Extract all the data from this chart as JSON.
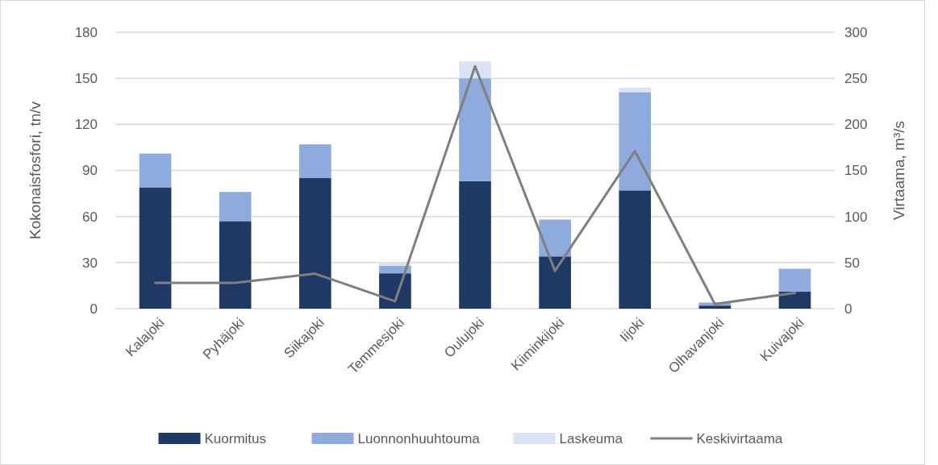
{
  "chart_data": {
    "type": "bar",
    "stacked": true,
    "categories": [
      "Kalajoki",
      "Pyhäjoki",
      "Siikajoki",
      "Temmesjoki",
      "Oulujoki",
      "Kiiminkijoki",
      "Iijoki",
      "Olhavanjoki",
      "Kuivajoki"
    ],
    "series": [
      {
        "name": "Kuormitus",
        "color": "#203864",
        "values": [
          79,
          57,
          85,
          23,
          83,
          34,
          77,
          2,
          11
        ]
      },
      {
        "name": "Luonnonhuuhtouma",
        "color": "#8faadc",
        "values": [
          22,
          19,
          22,
          5,
          67,
          24,
          64,
          2,
          15
        ]
      },
      {
        "name": "Laskeuma",
        "color": "#dae3f3",
        "values": [
          0,
          0,
          0,
          1.5,
          11,
          0,
          3,
          0,
          0
        ]
      },
      {
        "name": "Keskivirtaama",
        "type": "line",
        "axis": "y2",
        "color": "#7f7f7f",
        "values": [
          28,
          28,
          38,
          8,
          263,
          41,
          171,
          5,
          17
        ]
      }
    ],
    "ylabel": "Kokonaisfosfori, tn/v",
    "y2label": "Virtaama, m³/s",
    "ylim": [
      0,
      180
    ],
    "yticks": [
      0,
      30,
      60,
      90,
      120,
      150,
      180
    ],
    "y2lim": [
      0,
      300
    ],
    "y2ticks": [
      0,
      50,
      100,
      150,
      200,
      250,
      300
    ],
    "grid": "y",
    "legend": "bottom"
  }
}
